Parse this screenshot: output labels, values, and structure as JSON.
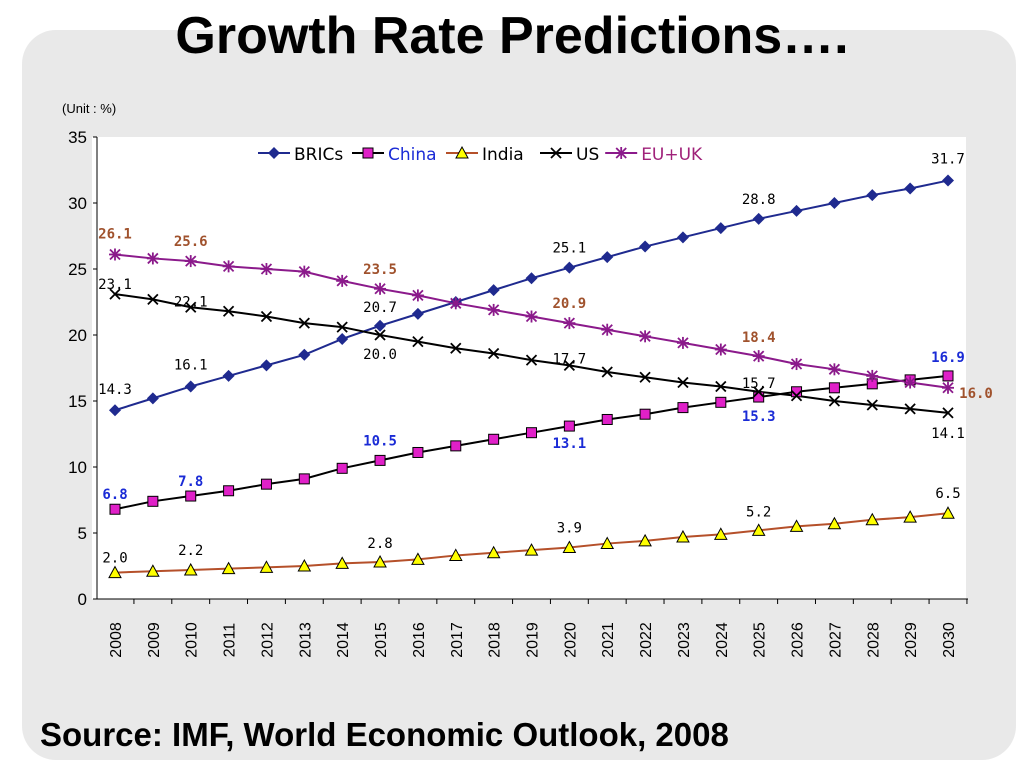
{
  "slide": {
    "title": "Growth Rate Predictions….",
    "source": "Source: IMF, World Economic Outlook, 2008"
  },
  "chart_data": {
    "type": "line",
    "unit_label": "(Unit : %)",
    "ylim": [
      0,
      35
    ],
    "yticks": [
      0,
      5,
      10,
      15,
      20,
      25,
      30,
      35
    ],
    "x": [
      "2008",
      "2009",
      "2010",
      "2011",
      "2012",
      "2013",
      "2014",
      "2015",
      "2016",
      "2017",
      "2018",
      "2019",
      "2020",
      "2021",
      "2022",
      "2023",
      "2024",
      "2025",
      "2026",
      "2027",
      "2028",
      "2029",
      "2030"
    ],
    "legend_position": "top",
    "grid": false,
    "series": [
      {
        "name": "BRICs",
        "color": "#1f2a8f",
        "label_color": "#000000",
        "marker": "diamond",
        "values": [
          14.3,
          15.2,
          16.1,
          16.9,
          17.7,
          18.5,
          19.7,
          20.7,
          21.6,
          22.5,
          23.4,
          24.3,
          25.1,
          25.9,
          26.7,
          27.4,
          28.1,
          28.8,
          29.4,
          30.0,
          30.6,
          31.1,
          31.7
        ]
      },
      {
        "name": "China",
        "color": "#000000",
        "label_color": "#1a2bd6",
        "marker": "square",
        "values": [
          6.8,
          7.4,
          7.8,
          8.2,
          8.7,
          9.1,
          9.9,
          10.5,
          11.1,
          11.6,
          12.1,
          12.6,
          13.1,
          13.6,
          14.0,
          14.5,
          14.9,
          15.3,
          15.7,
          16.0,
          16.3,
          16.6,
          16.9
        ]
      },
      {
        "name": "India",
        "color": "#b5502a",
        "label_color": "#000000",
        "marker": "triangle",
        "values": [
          2.0,
          2.1,
          2.2,
          2.3,
          2.4,
          2.5,
          2.7,
          2.8,
          3.0,
          3.3,
          3.5,
          3.7,
          3.9,
          4.2,
          4.4,
          4.7,
          4.9,
          5.2,
          5.5,
          5.7,
          6.0,
          6.2,
          6.5
        ]
      },
      {
        "name": "US",
        "color": "#000000",
        "label_color": "#000000",
        "marker": "x",
        "values": [
          23.1,
          22.7,
          22.1,
          21.8,
          21.4,
          20.9,
          20.6,
          20.0,
          19.5,
          19.0,
          18.6,
          18.1,
          17.7,
          17.2,
          16.8,
          16.4,
          16.1,
          15.7,
          15.4,
          15.0,
          14.7,
          14.4,
          14.1
        ]
      },
      {
        "name": "EU+UK",
        "color": "#8b1a8b",
        "label_color": "#a0522d",
        "marker": "star",
        "values": [
          26.1,
          25.8,
          25.6,
          25.2,
          25.0,
          24.8,
          24.1,
          23.5,
          23.0,
          22.4,
          21.9,
          21.4,
          20.9,
          20.4,
          19.9,
          19.4,
          18.9,
          18.4,
          17.8,
          17.4,
          16.9,
          16.4,
          16.0
        ]
      }
    ],
    "data_labels": [
      {
        "series": 0,
        "i": 0,
        "text": "14.3"
      },
      {
        "series": 0,
        "i": 2,
        "text": "16.1"
      },
      {
        "series": 0,
        "i": 7,
        "text": "20.7"
      },
      {
        "series": 0,
        "i": 12,
        "text": "25.1"
      },
      {
        "series": 0,
        "i": 17,
        "text": "28.8"
      },
      {
        "series": 0,
        "i": 22,
        "text": "31.7"
      },
      {
        "series": 1,
        "i": 0,
        "text": "6.8"
      },
      {
        "series": 1,
        "i": 2,
        "text": "7.8"
      },
      {
        "series": 1,
        "i": 7,
        "text": "10.5"
      },
      {
        "series": 1,
        "i": 12,
        "text": "13.1"
      },
      {
        "series": 1,
        "i": 17,
        "text": "15.3"
      },
      {
        "series": 1,
        "i": 22,
        "text": "16.9"
      },
      {
        "series": 2,
        "i": 0,
        "text": "2.0"
      },
      {
        "series": 2,
        "i": 2,
        "text": "2.2"
      },
      {
        "series": 2,
        "i": 7,
        "text": "2.8"
      },
      {
        "series": 2,
        "i": 12,
        "text": "3.9"
      },
      {
        "series": 2,
        "i": 17,
        "text": "5.2"
      },
      {
        "series": 2,
        "i": 22,
        "text": "6.5"
      },
      {
        "series": 3,
        "i": 0,
        "text": "23.1"
      },
      {
        "series": 3,
        "i": 2,
        "text": "22.1"
      },
      {
        "series": 3,
        "i": 7,
        "text": "20.0"
      },
      {
        "series": 3,
        "i": 12,
        "text": "17.7"
      },
      {
        "series": 3,
        "i": 17,
        "text": "15.7"
      },
      {
        "series": 3,
        "i": 22,
        "text": "14.1"
      },
      {
        "series": 4,
        "i": 0,
        "text": "26.1"
      },
      {
        "series": 4,
        "i": 2,
        "text": "25.6"
      },
      {
        "series": 4,
        "i": 7,
        "text": "23.5"
      },
      {
        "series": 4,
        "i": 12,
        "text": "20.9"
      },
      {
        "series": 4,
        "i": 17,
        "text": "18.4"
      },
      {
        "series": 4,
        "i": 22,
        "text": "16.0"
      }
    ]
  }
}
